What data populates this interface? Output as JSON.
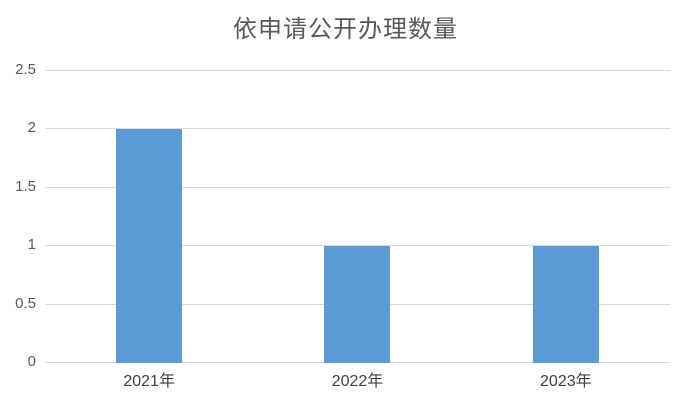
{
  "title": "依申请公开办理数量",
  "colors": {
    "bar": "#5B9BD5",
    "gridline": "#D9D9D9",
    "title_text": "#595959",
    "y_tick_text": "#595959",
    "x_tick_text": "#404040",
    "background": "#FFFFFF"
  },
  "chart_data": {
    "type": "bar",
    "title": "依申请公开办理数量",
    "categories": [
      "2021年",
      "2022年",
      "2023年"
    ],
    "values": [
      2,
      1,
      1
    ],
    "xlabel": "",
    "ylabel": "",
    "ylim": [
      0,
      2.5
    ],
    "yticks": [
      0,
      0.5,
      1,
      1.5,
      2,
      2.5
    ],
    "grid": true,
    "legend": false
  }
}
